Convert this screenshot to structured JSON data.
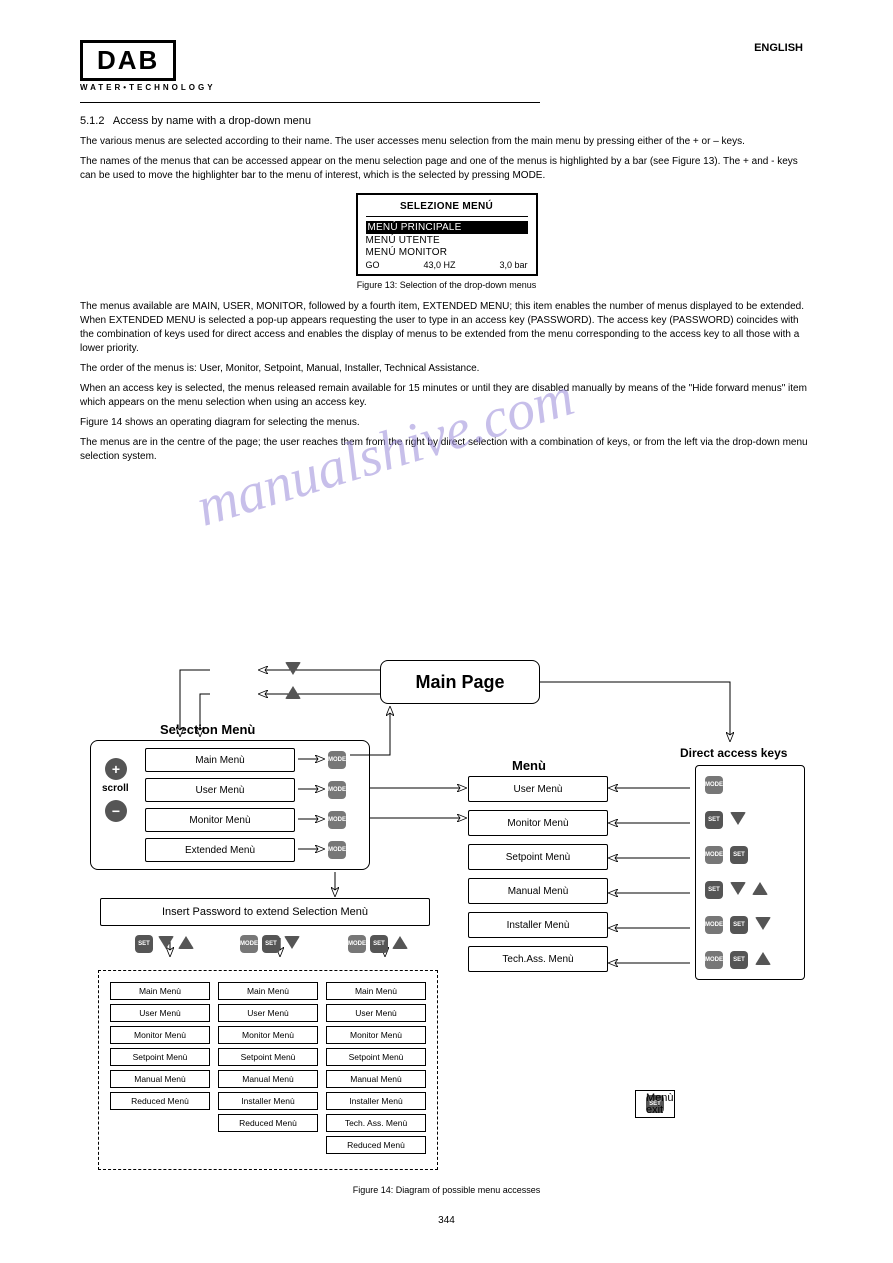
{
  "logo": {
    "text": "DAB",
    "subtitle": "WATER•TECHNOLOGY"
  },
  "header_right": "ENGLISH",
  "section": {
    "number": "5.1.2",
    "title": "Access by name with a drop-down menu"
  },
  "para1": "The various menus are selected according to their name. The user accesses menu selection from the main menu by pressing either of the + or – keys.",
  "para2": "The names of the menus that can be accessed appear on the menu selection page and one of the menus is highlighted by a bar (see Figure 13). The + and - keys can be used to move the highlighter bar to the menu of interest, which is the selected by pressing MODE.",
  "lcd": {
    "title": "SELEZIONE MENÚ",
    "rows": [
      "MENÚ PRINCIPALE",
      "MENÚ UTENTE",
      "MENÚ MONITOR"
    ],
    "selected_index": 0,
    "status": {
      "state": "GO",
      "hz": "43,0 HZ",
      "bar": "3,0 bar"
    }
  },
  "fig13": "Figure 13: Selection of the drop-down menus",
  "para3": "The menus available are MAIN, USER, MONITOR, followed by a fourth item, EXTENDED MENU; this item enables the number of menus displayed to be extended. When EXTENDED MENU is selected a pop-up appears requesting the user to type in an access key (PASSWORD). The access key (PASSWORD) coincides with the combination of keys used for direct access and enables the display of menus to be extended from the menu corresponding to the access key to all those with a lower priority.",
  "para4": "The order of the menus is: User, Monitor, Setpoint, Manual, Installer, Technical Assistance.",
  "para5": "When an access key is selected, the menus released remain available for 15 minutes or until they are disabled manually by means of the \"Hide forward menus\" item which appears on the menu selection when using an access key.",
  "para6": "Figure 14 shows an operating diagram for selecting the menus.",
  "para7": "The menus are in the centre of the page; the user reaches them from the right by direct selection with a combination of keys, or from the left via the drop-down menu selection system.",
  "diagram": {
    "main_page": "Main Page",
    "selection_menu_label": "Selection Menù",
    "selection_items": [
      "Main Menù",
      "User Menù",
      "Monitor Menù",
      "Extended Menù"
    ],
    "scroll_label": "scroll",
    "menu_label": "Menù",
    "menu_items": [
      "User Menù",
      "Monitor Menù",
      "Setpoint Menù",
      "Manual Menù",
      "Installer Menù",
      "Tech.Ass. Menù"
    ],
    "direct_keys_label": "Direct access keys",
    "password_box": "Insert Password to extend Selection Menù",
    "col1": [
      "Main Menù",
      "User Menù",
      "Monitor Menù",
      "Setpoint Menù",
      "Manual Menù",
      "Reduced Menù"
    ],
    "col2": [
      "Main Menù",
      "User Menù",
      "Monitor Menù",
      "Setpoint Menù",
      "Manual Menù",
      "Installer Menù",
      "Reduced Menù"
    ],
    "col3": [
      "Main Menù",
      "User Menù",
      "Monitor Menù",
      "Setpoint Menù",
      "Manual Menù",
      "Installer Menù",
      "Tech. Ass. Menù",
      "Reduced Menù"
    ],
    "exit_label": "Menù exit",
    "key_labels": {
      "mode": "MODE",
      "set": "SET"
    }
  },
  "fig14": "Figure 14: Diagram of possible menu accesses",
  "page_number": "344",
  "colors": {
    "watermark": "#9b8cd9",
    "key_bg": "#666666",
    "text": "#000000",
    "bg": "#ffffff"
  }
}
